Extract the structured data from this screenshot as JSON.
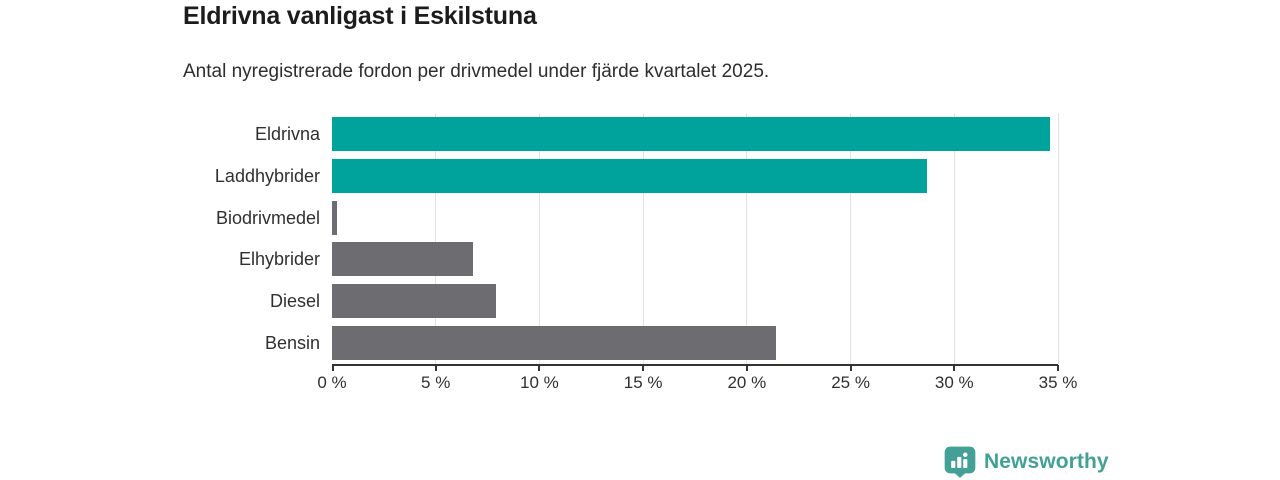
{
  "header": {
    "title": "Eldrivna vanligast i Eskilstuna",
    "subtitle": "Antal nyregistrerade fordon per drivmedel under fjärde kvartalet 2025."
  },
  "chart_data": {
    "type": "bar",
    "orientation": "horizontal",
    "title": "Eldrivna vanligast i Eskilstuna",
    "subtitle": "Antal nyregistrerade fordon per drivmedel under fjärde kvartalet 2025.",
    "categories": [
      "Eldrivna",
      "Laddhybrider",
      "Biodrivmedel",
      "Elhybrider",
      "Diesel",
      "Bensin"
    ],
    "values": [
      34.6,
      28.7,
      0.25,
      6.8,
      7.9,
      21.4
    ],
    "unit": "%",
    "bar_colors": [
      "#00a39b",
      "#00a39b",
      "#6d6d71",
      "#6d6d71",
      "#6d6d71",
      "#6d6d71"
    ],
    "xlabel": "",
    "ylabel": "",
    "xlim": [
      0,
      35
    ],
    "x_ticks": [
      0,
      5,
      10,
      15,
      20,
      25,
      30,
      35
    ],
    "x_tick_labels": [
      "0 %",
      "5 %",
      "10 %",
      "15 %",
      "20 %",
      "25 %",
      "30 %",
      "35 %"
    ],
    "grid": "vertical-only",
    "legend": "none"
  },
  "colors": {
    "accent_teal": "#00a39b",
    "neutral_gray": "#6d6d71",
    "gridline": "#e2e2e2",
    "axis": "#333333",
    "text": "#303030",
    "title_text": "#1c1c1c",
    "brand_teal": "#42a097"
  },
  "footer": {
    "brand_label": "Newsworthy",
    "brand_icon": "newsworthy-chart-pin-icon"
  }
}
